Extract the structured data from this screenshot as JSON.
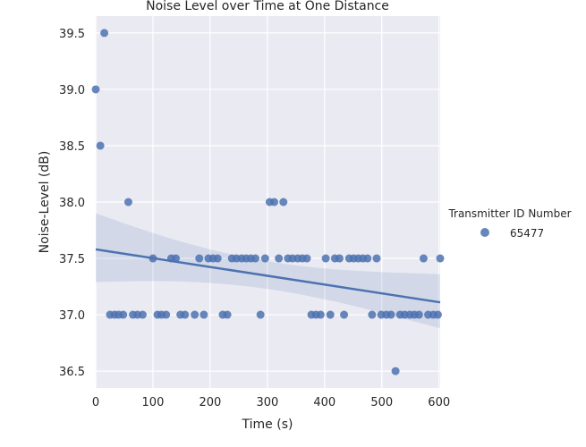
{
  "chart_data": {
    "type": "scatter",
    "title": "Noise Level over Time at One Distance",
    "xlabel": "Time (s)",
    "ylabel": "Noise-Level (dB)",
    "xlim": [
      0,
      602
    ],
    "ylim": [
      36.35,
      39.65
    ],
    "xticks": [
      0,
      100,
      200,
      300,
      400,
      500,
      600
    ],
    "yticks": [
      36.5,
      37.0,
      37.5,
      38.0,
      38.5,
      39.0,
      39.5
    ],
    "grid": true,
    "background": "#eaeaf2",
    "point_color": "#4c72b0",
    "legend": {
      "title": "Transmitter ID Number",
      "placement": "right",
      "entries": [
        {
          "label": "65477",
          "color": "#4c72b0"
        }
      ]
    },
    "series": [
      {
        "name": "65477",
        "points": [
          [
            0,
            39.0
          ],
          [
            8,
            38.5
          ],
          [
            15,
            39.5
          ],
          [
            25,
            37.0
          ],
          [
            33,
            37.0
          ],
          [
            40,
            37.0
          ],
          [
            48,
            37.0
          ],
          [
            57,
            38.0
          ],
          [
            65,
            37.0
          ],
          [
            73,
            37.0
          ],
          [
            82,
            37.0
          ],
          [
            100,
            37.5
          ],
          [
            108,
            37.0
          ],
          [
            115,
            37.0
          ],
          [
            123,
            37.0
          ],
          [
            132,
            37.5
          ],
          [
            140,
            37.5
          ],
          [
            148,
            37.0
          ],
          [
            156,
            37.0
          ],
          [
            173,
            37.0
          ],
          [
            181,
            37.5
          ],
          [
            189,
            37.0
          ],
          [
            197,
            37.5
          ],
          [
            205,
            37.5
          ],
          [
            213,
            37.5
          ],
          [
            222,
            37.0
          ],
          [
            230,
            37.0
          ],
          [
            238,
            37.5
          ],
          [
            246,
            37.5
          ],
          [
            255,
            37.5
          ],
          [
            263,
            37.5
          ],
          [
            271,
            37.5
          ],
          [
            279,
            37.5
          ],
          [
            288,
            37.0
          ],
          [
            296,
            37.5
          ],
          [
            304,
            38.0
          ],
          [
            312,
            38.0
          ],
          [
            320,
            37.5
          ],
          [
            328,
            38.0
          ],
          [
            336,
            37.5
          ],
          [
            344,
            37.5
          ],
          [
            353,
            37.5
          ],
          [
            361,
            37.5
          ],
          [
            369,
            37.5
          ],
          [
            377,
            37.0
          ],
          [
            385,
            37.0
          ],
          [
            393,
            37.0
          ],
          [
            402,
            37.5
          ],
          [
            410,
            37.0
          ],
          [
            418,
            37.5
          ],
          [
            426,
            37.5
          ],
          [
            434,
            37.0
          ],
          [
            443,
            37.5
          ],
          [
            451,
            37.5
          ],
          [
            459,
            37.5
          ],
          [
            467,
            37.5
          ],
          [
            475,
            37.5
          ],
          [
            483,
            37.0
          ],
          [
            491,
            37.5
          ],
          [
            499,
            37.0
          ],
          [
            508,
            37.0
          ],
          [
            516,
            37.0
          ],
          [
            524,
            36.5
          ],
          [
            532,
            37.0
          ],
          [
            540,
            37.0
          ],
          [
            549,
            37.0
          ],
          [
            557,
            37.0
          ],
          [
            565,
            37.0
          ],
          [
            573,
            37.5
          ],
          [
            581,
            37.0
          ],
          [
            590,
            37.0
          ],
          [
            598,
            37.0
          ],
          [
            602,
            37.5
          ]
        ]
      }
    ],
    "regression": {
      "x": [
        0,
        602
      ],
      "y": [
        37.58,
        37.11
      ],
      "ci_lower": [
        37.29,
        36.88
      ],
      "ci_upper": [
        37.9,
        37.36
      ]
    }
  }
}
